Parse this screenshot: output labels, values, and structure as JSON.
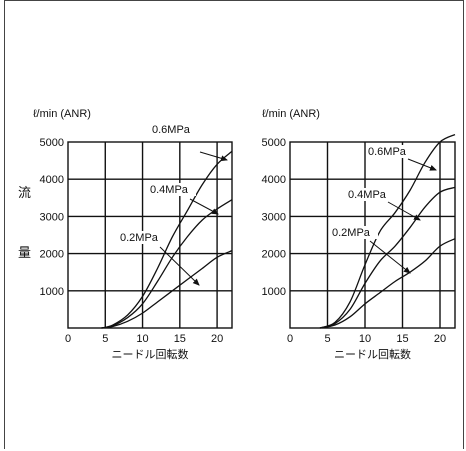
{
  "ylabel_vertical": [
    "流",
    "量"
  ],
  "chart_data": [
    {
      "type": "line",
      "unit_label": "ℓ/min (ANR)",
      "xlabel": "ニードル回転数",
      "xlim": [
        0,
        22
      ],
      "ylim": [
        0,
        5000
      ],
      "xticks": [
        "0",
        "5",
        "10",
        "15",
        "20"
      ],
      "yticks": [
        "1000",
        "2000",
        "3000",
        "4000",
        "5000"
      ],
      "grid": true,
      "series": [
        {
          "name": "0.6MPa",
          "x": [
            4.5,
            6,
            8,
            10,
            12,
            14,
            16,
            18,
            20,
            22
          ],
          "y": [
            0,
            80,
            350,
            850,
            1600,
            2450,
            3150,
            3850,
            4400,
            4750
          ]
        },
        {
          "name": "0.4MPa",
          "x": [
            4.5,
            6,
            8,
            10,
            12,
            14,
            16,
            18,
            20,
            22
          ],
          "y": [
            0,
            60,
            280,
            650,
            1250,
            1900,
            2450,
            2900,
            3200,
            3450
          ]
        },
        {
          "name": "0.2MPa",
          "x": [
            4.5,
            6,
            8,
            10,
            12,
            14,
            16,
            18,
            20,
            22
          ],
          "y": [
            0,
            40,
            180,
            400,
            700,
            1000,
            1300,
            1600,
            1900,
            2080
          ]
        }
      ]
    },
    {
      "type": "line",
      "unit_label": "ℓ/min (ANR)",
      "xlabel": "ニードル回転数",
      "xlim": [
        0,
        22
      ],
      "ylim": [
        0,
        5000
      ],
      "xticks": [
        "0",
        "5",
        "10",
        "15",
        "20"
      ],
      "yticks": [
        "1000",
        "2000",
        "3000",
        "4000",
        "5000"
      ],
      "grid": true,
      "series": [
        {
          "name": "0.6MPa",
          "x": [
            4,
            6,
            8,
            10,
            12,
            14,
            16,
            18,
            20,
            22
          ],
          "y": [
            0,
            150,
            700,
            1700,
            2600,
            3100,
            3700,
            4450,
            5000,
            5200
          ]
        },
        {
          "name": "0.4MPa",
          "x": [
            4,
            6,
            8,
            10,
            12,
            14,
            16,
            18,
            20,
            22
          ],
          "y": [
            0,
            120,
            500,
            1200,
            1800,
            2200,
            2700,
            3250,
            3650,
            3780
          ]
        },
        {
          "name": "0.2MPa",
          "x": [
            4,
            6,
            8,
            10,
            12,
            14,
            16,
            18,
            20,
            22
          ],
          "y": [
            0,
            80,
            300,
            650,
            950,
            1250,
            1500,
            1800,
            2200,
            2400
          ]
        }
      ]
    }
  ]
}
